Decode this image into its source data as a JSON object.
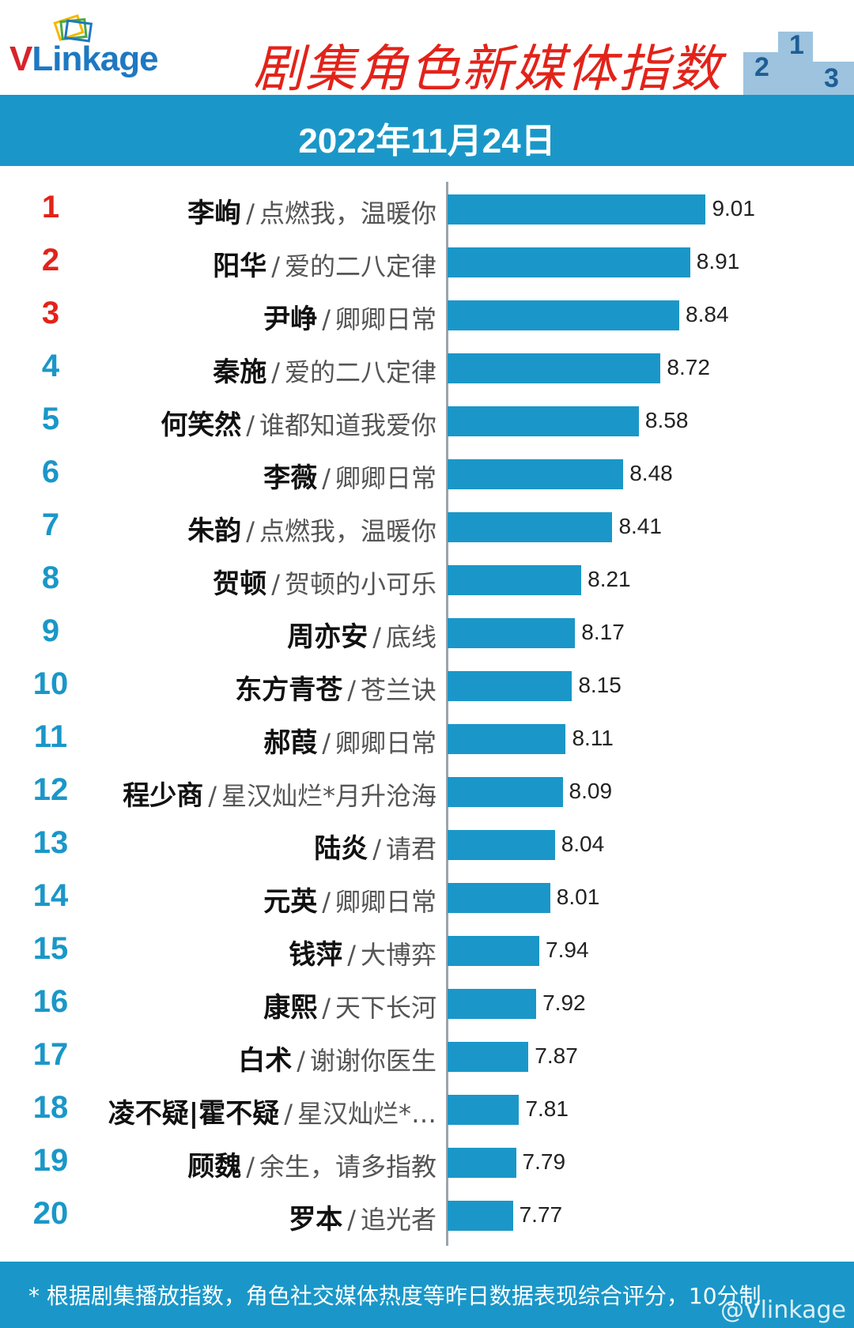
{
  "header": {
    "logo": {
      "v": "V",
      "rest": "Linkage"
    },
    "title": "剧集角色新媒体指数",
    "date": "2022年11月24日"
  },
  "colors": {
    "accent": "#1a97c8",
    "title_red": "#e2231a",
    "top_rank": "#e2231a",
    "rank": "#1a97c8"
  },
  "chart_data": {
    "type": "bar",
    "orientation": "horizontal",
    "title": "剧集角色新媒体指数",
    "subtitle": "2022年11月24日",
    "xlim": [
      7.35,
      9.15
    ],
    "grid": false,
    "rows": [
      {
        "rank": "1",
        "name": "李峋",
        "drama": "点燃我，温暖你",
        "value": 9.01,
        "value_label": "9.01"
      },
      {
        "rank": "2",
        "name": "阳华",
        "drama": "爱的二八定律",
        "value": 8.91,
        "value_label": "8.91"
      },
      {
        "rank": "3",
        "name": "尹峥",
        "drama": "卿卿日常",
        "value": 8.84,
        "value_label": "8.84"
      },
      {
        "rank": "4",
        "name": "秦施",
        "drama": "爱的二八定律",
        "value": 8.72,
        "value_label": "8.72"
      },
      {
        "rank": "5",
        "name": "何笑然",
        "drama": "谁都知道我爱你",
        "value": 8.58,
        "value_label": "8.58"
      },
      {
        "rank": "6",
        "name": "李薇",
        "drama": "卿卿日常",
        "value": 8.48,
        "value_label": "8.48"
      },
      {
        "rank": "7",
        "name": "朱韵",
        "drama": "点燃我，温暖你",
        "value": 8.41,
        "value_label": "8.41"
      },
      {
        "rank": "8",
        "name": "贺顿",
        "drama": "贺顿的小可乐",
        "value": 8.21,
        "value_label": "8.21"
      },
      {
        "rank": "9",
        "name": "周亦安",
        "drama": "底线",
        "value": 8.17,
        "value_label": "8.17"
      },
      {
        "rank": "10",
        "name": "东方青苍",
        "drama": "苍兰诀",
        "value": 8.15,
        "value_label": "8.15"
      },
      {
        "rank": "11",
        "name": "郝葭",
        "drama": "卿卿日常",
        "value": 8.11,
        "value_label": "8.11"
      },
      {
        "rank": "12",
        "name": "程少商",
        "drama": "星汉灿烂*月升沧海",
        "value": 8.09,
        "value_label": "8.09"
      },
      {
        "rank": "13",
        "name": "陆炎",
        "drama": "请君",
        "value": 8.04,
        "value_label": "8.04"
      },
      {
        "rank": "14",
        "name": "元英",
        "drama": "卿卿日常",
        "value": 8.01,
        "value_label": "8.01"
      },
      {
        "rank": "15",
        "name": "钱萍",
        "drama": "大博弈",
        "value": 7.94,
        "value_label": "7.94"
      },
      {
        "rank": "16",
        "name": "康熙",
        "drama": "天下长河",
        "value": 7.92,
        "value_label": "7.92"
      },
      {
        "rank": "17",
        "name": "白术",
        "drama": "谢谢你医生",
        "value": 7.87,
        "value_label": "7.87"
      },
      {
        "rank": "18",
        "name": "凌不疑|霍不疑",
        "drama": "星汉灿烂*…",
        "value": 7.81,
        "value_label": "7.81"
      },
      {
        "rank": "19",
        "name": "顾魏",
        "drama": "余生，请多指教",
        "value": 7.79,
        "value_label": "7.79"
      },
      {
        "rank": "20",
        "name": "罗本",
        "drama": "追光者",
        "value": 7.77,
        "value_label": "7.77"
      }
    ]
  },
  "footer": {
    "note": "* 根据剧集播放指数，角色社交媒体热度等昨日数据表现综合评分，10分制",
    "watermark": "@Vlinkage"
  }
}
